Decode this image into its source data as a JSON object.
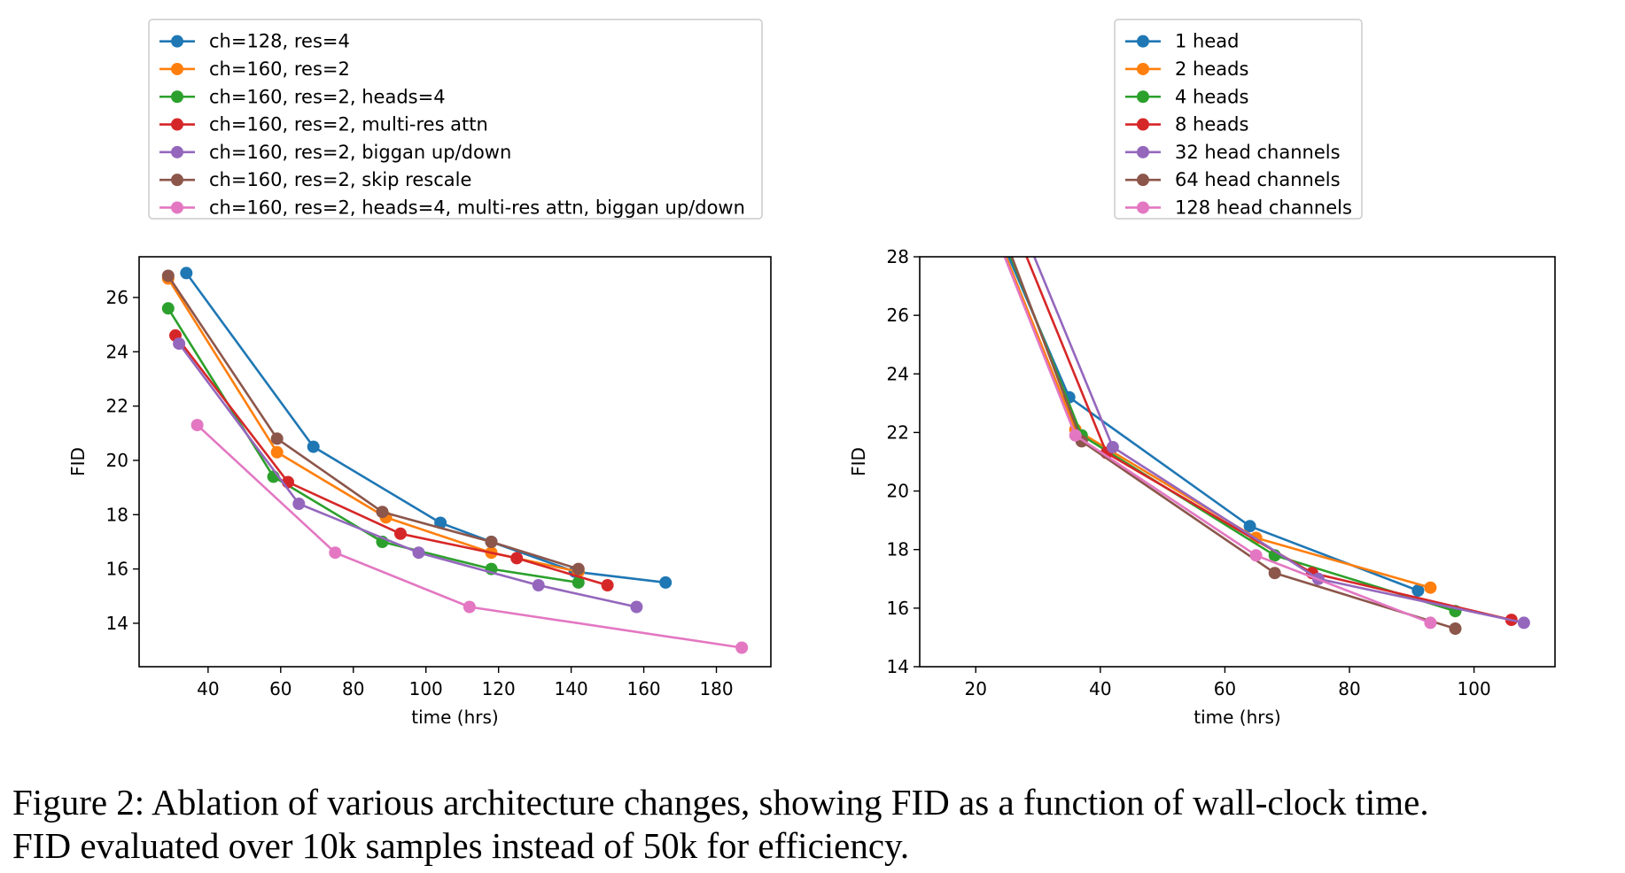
{
  "chart_data": [
    {
      "type": "line",
      "xlabel": "time (hrs)",
      "ylabel": "FID",
      "xlim": [
        21,
        195
      ],
      "ylim": [
        12.4,
        27.5
      ],
      "xticks": [
        40,
        60,
        80,
        100,
        120,
        140,
        160,
        180
      ],
      "yticks": [
        14,
        16,
        18,
        20,
        22,
        24,
        26
      ],
      "legend": "top (above plot)",
      "grid": false,
      "series": [
        {
          "name": "ch=128, res=4",
          "color": "#1f77b4",
          "x": [
            34,
            69,
            104,
            118,
            141,
            166
          ],
          "y": [
            26.9,
            20.5,
            17.7,
            17.0,
            15.9,
            15.5
          ]
        },
        {
          "name": "ch=160, res=2",
          "color": "#ff7f0e",
          "x": [
            29,
            59,
            89,
            118,
            142
          ],
          "y": [
            26.7,
            20.3,
            17.9,
            16.6,
            15.9
          ]
        },
        {
          "name": "ch=160, res=2, heads=4",
          "color": "#2ca02c",
          "x": [
            29,
            58,
            88,
            118,
            142
          ],
          "y": [
            25.6,
            19.4,
            17.0,
            16.0,
            15.5
          ]
        },
        {
          "name": "ch=160, res=2, multi-res attn",
          "color": "#d62728",
          "x": [
            31,
            62,
            93,
            125,
            150
          ],
          "y": [
            24.6,
            19.2,
            17.3,
            16.4,
            15.4
          ]
        },
        {
          "name": "ch=160, res=2, biggan up/down",
          "color": "#9467bd",
          "x": [
            32,
            65,
            98,
            131,
            158
          ],
          "y": [
            24.3,
            18.4,
            16.6,
            15.4,
            14.6
          ]
        },
        {
          "name": "ch=160, res=2, skip rescale",
          "color": "#8c564b",
          "x": [
            29,
            59,
            88,
            118,
            142
          ],
          "y": [
            26.8,
            20.8,
            18.1,
            17.0,
            16.0
          ]
        },
        {
          "name": "ch=160, res=2, heads=4, multi-res attn, biggan up/down",
          "color": "#e377c2",
          "x": [
            37,
            75,
            112,
            187
          ],
          "y": [
            21.3,
            16.6,
            14.6,
            13.1
          ]
        }
      ]
    },
    {
      "type": "line",
      "xlabel": "time (hrs)",
      "ylabel": "FID",
      "xlim": [
        11,
        113
      ],
      "ylim": [
        14,
        28
      ],
      "xticks": [
        20,
        40,
        60,
        80,
        100
      ],
      "yticks": [
        14,
        16,
        18,
        20,
        22,
        24,
        26,
        28
      ],
      "legend": "top (above plot)",
      "grid": false,
      "series": [
        {
          "name": "1 head",
          "color": "#1f77b4",
          "x": [
            5,
            35,
            64,
            91
          ],
          "y": [
            38,
            23.2,
            18.8,
            16.6
          ]
        },
        {
          "name": "2 heads",
          "color": "#ff7f0e",
          "x": [
            6,
            36,
            65,
            93
          ],
          "y": [
            38,
            22.1,
            18.4,
            16.7
          ]
        },
        {
          "name": "4 heads",
          "color": "#2ca02c",
          "x": [
            7,
            37,
            68,
            97
          ],
          "y": [
            38,
            21.9,
            17.8,
            15.9
          ]
        },
        {
          "name": "8 heads",
          "color": "#d62728",
          "x": [
            9,
            41,
            74,
            106
          ],
          "y": [
            38,
            21.3,
            17.2,
            15.6
          ]
        },
        {
          "name": "32 head channels",
          "color": "#9467bd",
          "x": [
            10,
            42,
            75,
            108
          ],
          "y": [
            38,
            21.5,
            17.0,
            15.5
          ]
        },
        {
          "name": "64 head channels",
          "color": "#8c564b",
          "x": [
            8,
            37,
            68,
            97
          ],
          "y": [
            38,
            21.7,
            17.2,
            15.3
          ]
        },
        {
          "name": "128 head channels",
          "color": "#e377c2",
          "x": [
            6,
            36,
            65,
            93
          ],
          "y": [
            38,
            21.9,
            17.8,
            15.5
          ]
        }
      ]
    }
  ],
  "caption": {
    "line1": "Figure 2:  Ablation of various architecture changes, showing FID as a function of wall-clock time.",
    "line2": "FID evaluated over 10k samples instead of 50k for efficiency."
  }
}
